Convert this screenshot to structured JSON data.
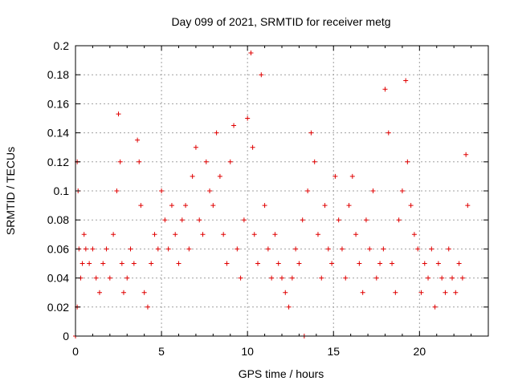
{
  "chart_data": {
    "type": "scatter",
    "title": "Day 099 of 2021, SRMTID for receiver metg",
    "xlabel": "GPS time / hours",
    "ylabel": "SRMTID / TECUs",
    "xlim": [
      0,
      24
    ],
    "ylim": [
      0,
      0.2
    ],
    "xticks": [
      0,
      5,
      10,
      15,
      20
    ],
    "xtick_labels": [
      "0",
      "5",
      "10",
      "15",
      "20"
    ],
    "yticks": [
      0,
      0.02,
      0.04,
      0.06,
      0.08,
      0.1,
      0.12,
      0.14,
      0.16,
      0.18,
      0.2
    ],
    "ytick_labels": [
      "0",
      "0.02",
      "0.04",
      "0.06",
      "0.08",
      "0.1",
      "0.12",
      "0.14",
      "0.16",
      "0.18",
      "0.2"
    ],
    "grid": true,
    "marker": "+",
    "color": "#e00000",
    "series": [
      {
        "name": "SRMTID",
        "x": [
          0.0,
          0.1,
          0.1,
          0.15,
          0.2,
          0.3,
          0.4,
          0.5,
          0.6,
          0.8,
          1.0,
          1.2,
          1.4,
          1.6,
          1.8,
          2.0,
          2.2,
          2.4,
          2.5,
          2.6,
          2.7,
          2.8,
          3.0,
          3.2,
          3.4,
          3.6,
          3.7,
          3.8,
          4.0,
          4.2,
          4.4,
          4.6,
          4.8,
          5.0,
          5.2,
          5.4,
          5.6,
          5.8,
          6.0,
          6.2,
          6.4,
          6.6,
          6.8,
          7.0,
          7.2,
          7.4,
          7.6,
          7.8,
          8.0,
          8.2,
          8.4,
          8.6,
          8.8,
          9.0,
          9.2,
          9.4,
          9.6,
          9.8,
          10.0,
          10.2,
          10.3,
          10.4,
          10.6,
          10.8,
          11.0,
          11.2,
          11.4,
          11.6,
          11.8,
          12.0,
          12.2,
          12.4,
          12.6,
          12.8,
          13.0,
          13.2,
          13.3,
          13.5,
          13.7,
          13.9,
          14.1,
          14.3,
          14.5,
          14.7,
          14.9,
          15.1,
          15.3,
          15.5,
          15.7,
          15.9,
          16.1,
          16.3,
          16.5,
          16.7,
          16.9,
          17.1,
          17.3,
          17.5,
          17.7,
          17.9,
          18.0,
          18.2,
          18.4,
          18.6,
          18.8,
          19.0,
          19.2,
          19.3,
          19.5,
          19.7,
          19.9,
          20.1,
          20.3,
          20.5,
          20.7,
          20.9,
          21.1,
          21.3,
          21.5,
          21.7,
          21.9,
          22.1,
          22.3,
          22.5,
          22.7,
          22.8
        ],
        "y": [
          0.0,
          0.02,
          0.12,
          0.1,
          0.06,
          0.04,
          0.05,
          0.07,
          0.06,
          0.05,
          0.06,
          0.04,
          0.03,
          0.05,
          0.06,
          0.04,
          0.07,
          0.1,
          0.153,
          0.12,
          0.05,
          0.03,
          0.04,
          0.06,
          0.05,
          0.135,
          0.12,
          0.09,
          0.03,
          0.02,
          0.05,
          0.07,
          0.06,
          0.1,
          0.08,
          0.06,
          0.09,
          0.07,
          0.05,
          0.08,
          0.09,
          0.06,
          0.11,
          0.13,
          0.08,
          0.07,
          0.12,
          0.1,
          0.09,
          0.14,
          0.11,
          0.07,
          0.05,
          0.12,
          0.145,
          0.06,
          0.04,
          0.08,
          0.15,
          0.195,
          0.13,
          0.07,
          0.05,
          0.18,
          0.09,
          0.06,
          0.04,
          0.07,
          0.05,
          0.04,
          0.03,
          0.02,
          0.04,
          0.06,
          0.05,
          0.08,
          0.0,
          0.1,
          0.14,
          0.12,
          0.07,
          0.04,
          0.09,
          0.06,
          0.05,
          0.11,
          0.08,
          0.06,
          0.04,
          0.09,
          0.11,
          0.07,
          0.05,
          0.03,
          0.08,
          0.06,
          0.1,
          0.04,
          0.05,
          0.06,
          0.17,
          0.14,
          0.05,
          0.03,
          0.08,
          0.1,
          0.176,
          0.12,
          0.09,
          0.07,
          0.06,
          0.03,
          0.05,
          0.04,
          0.06,
          0.02,
          0.05,
          0.04,
          0.03,
          0.06,
          0.04,
          0.03,
          0.05,
          0.04,
          0.125,
          0.09
        ]
      }
    ]
  }
}
